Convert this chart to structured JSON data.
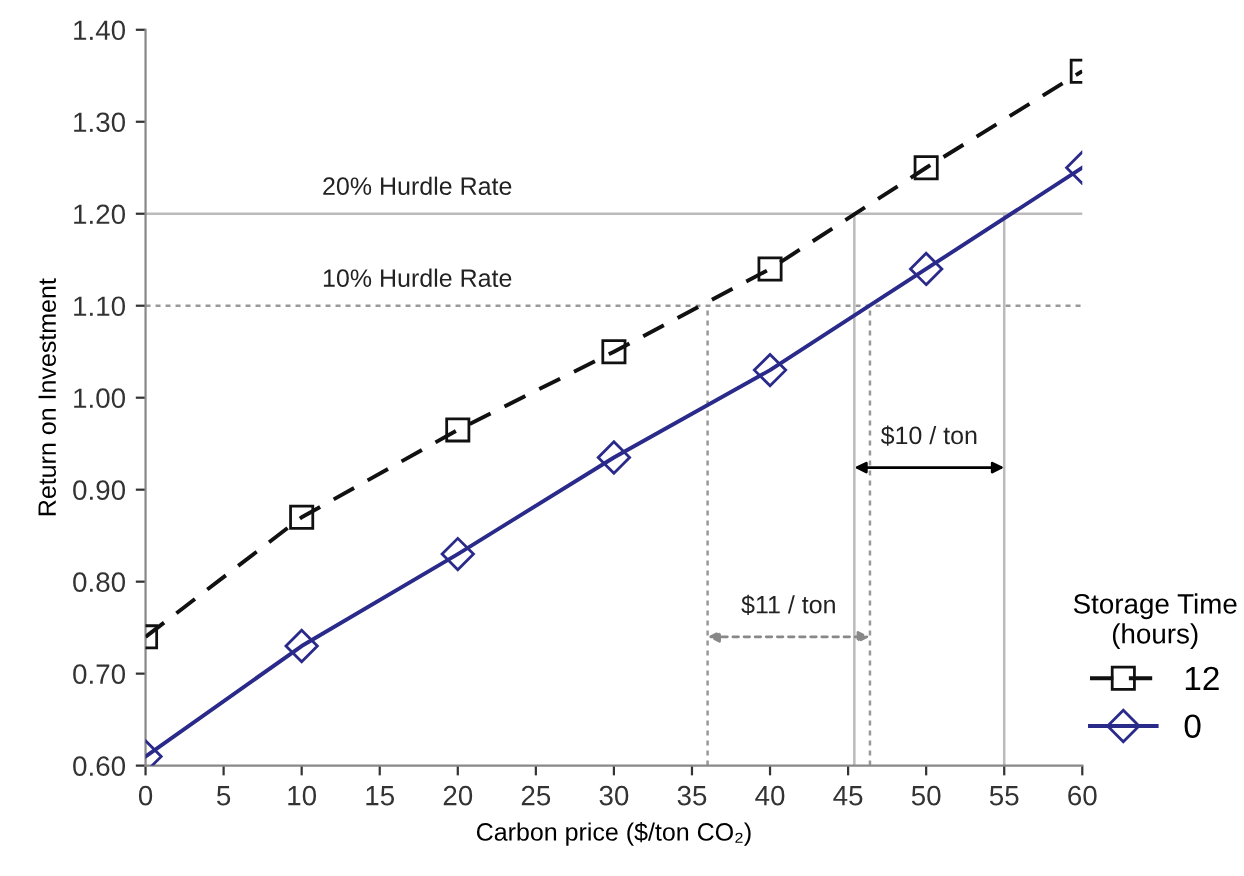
{
  "chart_data": {
    "type": "line",
    "xlabel": "Carbon price ($/ton CO₂)",
    "ylabel": "Return on Investment",
    "legend_title": "Storage Time\n(hours)",
    "x": [
      0,
      10,
      20,
      30,
      40,
      50,
      60
    ],
    "series": [
      {
        "name": "12",
        "color": "#111111",
        "marker": "square",
        "line_style": "dashed",
        "values": [
          0.74,
          0.87,
          0.965,
          1.05,
          1.14,
          1.25,
          1.355
        ]
      },
      {
        "name": "0",
        "color": "#2a2a8a",
        "marker": "diamond",
        "line_style": "solid",
        "values": [
          0.61,
          0.73,
          0.83,
          0.935,
          1.03,
          1.14,
          1.25
        ]
      }
    ],
    "xlim": [
      0,
      60
    ],
    "xticks": [
      0,
      5,
      10,
      15,
      20,
      25,
      30,
      35,
      40,
      45,
      50,
      55,
      60
    ],
    "ylim": [
      0.6,
      1.4
    ],
    "yticks": [
      {
        "value": 0.6,
        "label": "0.60"
      },
      {
        "value": 0.7,
        "label": "0.70"
      },
      {
        "value": 0.8,
        "label": "0.80"
      },
      {
        "value": 0.9,
        "label": "0.90"
      },
      {
        "value": 1.0,
        "label": "1.00"
      },
      {
        "value": 1.1,
        "label": "1.10"
      },
      {
        "value": 1.2,
        "label": "1.20"
      },
      {
        "value": 1.3,
        "label": "1.30"
      },
      {
        "value": 1.4,
        "label": "1.40"
      }
    ],
    "ref_lines": [
      {
        "axis": "y",
        "value": 1.2,
        "label": "20% Hurdle Rate",
        "color": "#bbbbbb",
        "line_style": "solid"
      },
      {
        "axis": "y",
        "value": 1.1,
        "label": "10% Hurdle Rate",
        "color": "#999999",
        "line_style": "dotted"
      },
      {
        "axis": "x",
        "value": 36,
        "color": "#999999",
        "line_style": "dotted"
      },
      {
        "axis": "x",
        "value": 46.4,
        "color": "#999999",
        "line_style": "dotted"
      },
      {
        "axis": "x",
        "value": 45.4,
        "color": "#bbbbbb",
        "line_style": "solid"
      },
      {
        "axis": "x",
        "value": 55,
        "color": "#bbbbbb",
        "line_style": "solid"
      }
    ],
    "annotations": [
      "$11 / ton",
      "$10 / ton"
    ],
    "grid": false,
    "legend": "bottom right"
  }
}
